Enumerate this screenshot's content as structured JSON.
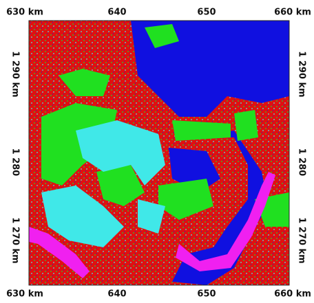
{
  "top_labels": [
    "630 km",
    "640",
    "650",
    "660 km"
  ],
  "bottom_labels": [
    "630 km",
    "640",
    "650",
    "660 km"
  ],
  "left_labels": [
    "1 290 km",
    "1 280",
    "1 270 km"
  ],
  "right_labels": [
    "1 290 km",
    "1 280",
    "1 270 km"
  ]
}
